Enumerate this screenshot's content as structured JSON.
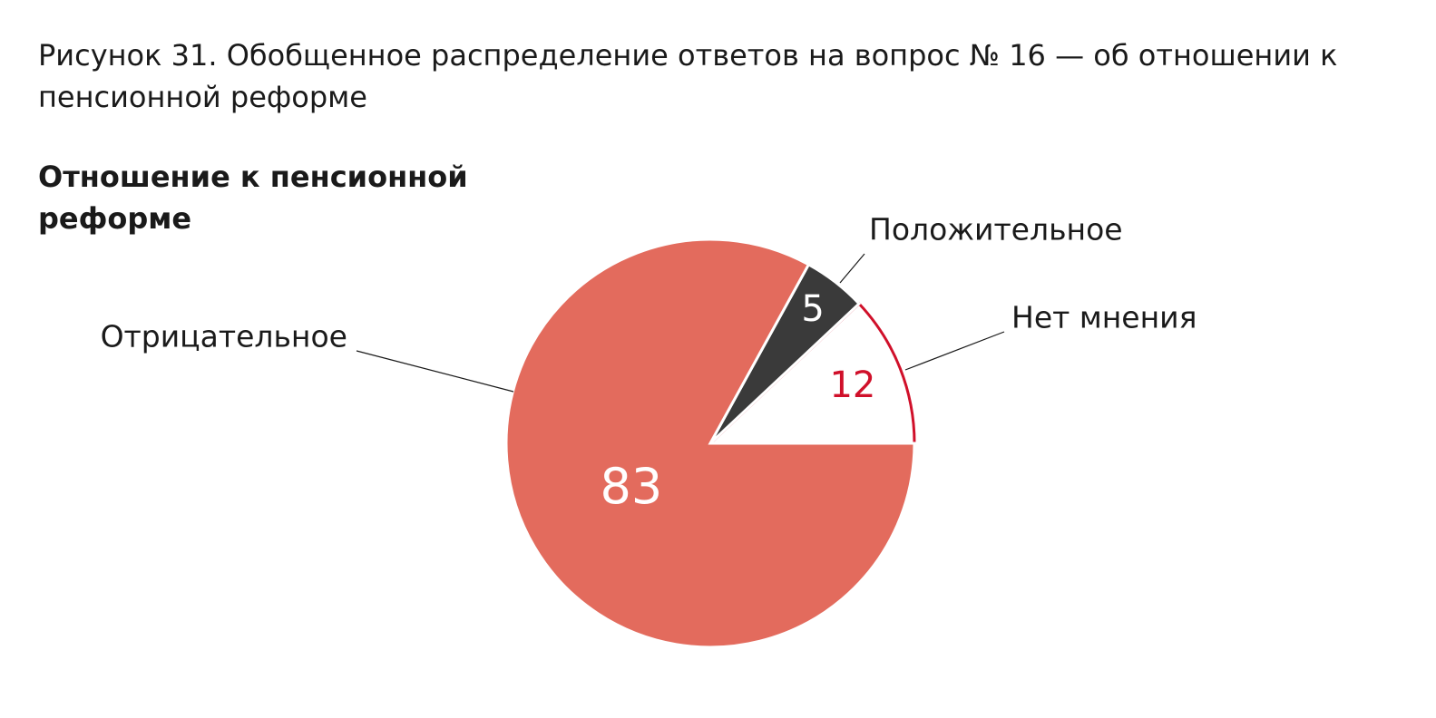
{
  "caption": "Рисунок 31. Обобщенное распределение ответов на вопрос № 16 — об отношении к пенсионной реформе",
  "chart_data": {
    "type": "pie",
    "title": "Отношение к пенсионной реформе",
    "categories": [
      "Нет мнения",
      "Положительное",
      "Отрицательное"
    ],
    "values": [
      12,
      5,
      83
    ],
    "colors": [
      "#ffffff",
      "#3a3a3a",
      "#e36b5d"
    ],
    "label_colors": [
      "#d0102a",
      "#ffffff",
      "#ffffff"
    ]
  }
}
